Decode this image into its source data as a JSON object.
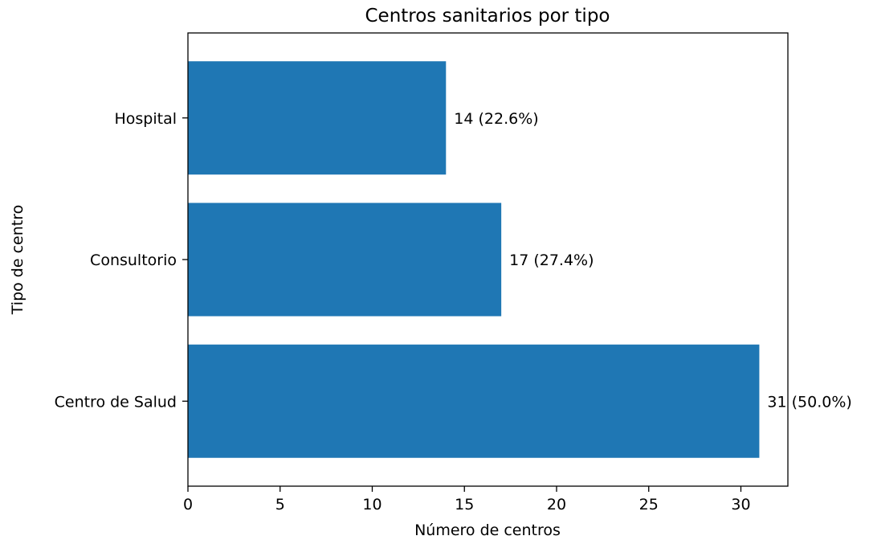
{
  "chart_data": {
    "type": "bar",
    "orientation": "horizontal",
    "title": "Centros sanitarios por tipo",
    "xlabel": "Número de centros",
    "ylabel": "Tipo de centro",
    "categories": [
      "Centro de Salud",
      "Consultorio",
      "Hospital"
    ],
    "values": [
      31,
      17,
      14
    ],
    "data_labels": [
      "31 (50.0%)",
      "17 (27.4%)",
      "14 (22.6%)"
    ],
    "xlim": [
      0,
      32.55
    ],
    "xticks": [
      0,
      5,
      10,
      15,
      20,
      25,
      30
    ],
    "grid": false,
    "bar_color": "#1f77b4"
  }
}
